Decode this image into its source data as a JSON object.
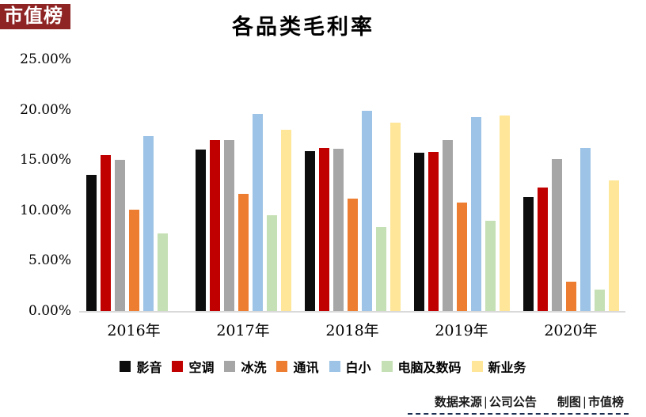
{
  "logo": {
    "text": "市值榜"
  },
  "chart_data": {
    "type": "bar",
    "title": "各品类毛利率",
    "categories": [
      "2016年",
      "2017年",
      "2018年",
      "2019年",
      "2020年"
    ],
    "series": [
      {
        "name": "影音",
        "color": "#0d0d0d",
        "values": [
          13.5,
          16.0,
          15.9,
          15.7,
          11.3
        ]
      },
      {
        "name": "空调",
        "color": "#c00000",
        "values": [
          15.5,
          17.0,
          16.2,
          15.8,
          12.3
        ]
      },
      {
        "name": "冰洗",
        "color": "#a6a6a6",
        "values": [
          15.0,
          17.0,
          16.1,
          17.0,
          15.1
        ]
      },
      {
        "name": "通讯",
        "color": "#ed7d31",
        "values": [
          10.1,
          11.6,
          11.2,
          10.8,
          2.9
        ]
      },
      {
        "name": "白小",
        "color": "#9dc3e6",
        "values": [
          17.4,
          19.6,
          19.9,
          19.3,
          16.2
        ]
      },
      {
        "name": "电脑及数码",
        "color": "#c5e0b4",
        "values": [
          7.7,
          9.5,
          8.3,
          9.0,
          2.1
        ]
      },
      {
        "name": "新业务",
        "color": "#ffe699",
        "values": [
          null,
          18.0,
          18.7,
          19.4,
          13.0
        ]
      }
    ],
    "ylim": [
      0,
      25
    ],
    "y_ticks": [
      {
        "label": "0.00%",
        "value": 0
      },
      {
        "label": "5.00%",
        "value": 5
      },
      {
        "label": "10.00%",
        "value": 10
      },
      {
        "label": "15.00%",
        "value": 15
      },
      {
        "label": "20.00%",
        "value": 20
      },
      {
        "label": "25.00%",
        "value": 25
      }
    ],
    "grid": false,
    "legend_position": "bottom",
    "axis_line_color": "#d9d9d9"
  },
  "footer": {
    "source_label": "数据来源",
    "source_value": "公司公告",
    "credit_label": "制图",
    "credit_value": "市值榜",
    "separator": "|"
  }
}
